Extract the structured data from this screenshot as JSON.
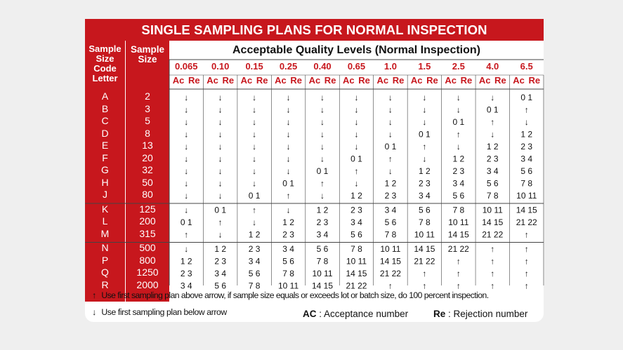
{
  "title": "SINGLE SAMPLING PLANS FOR NORMAL INSPECTION",
  "header": {
    "code_letter_label": "Sample Size Code Letter",
    "sample_size_label": "Sample Size",
    "aql_title": "Acceptable Quality Levels (Normal Inspection)",
    "ac_re_label": "Ac Re"
  },
  "aql_levels": [
    "0.065",
    "0.10",
    "0.15",
    "0.25",
    "0.40",
    "0.65",
    "1.0",
    "1.5",
    "2.5",
    "4.0",
    "6.5"
  ],
  "code_letters": [
    "A",
    "B",
    "C",
    "D",
    "E",
    "F",
    "G",
    "H",
    "J",
    "K",
    "L",
    "M",
    "N",
    "P",
    "Q",
    "R"
  ],
  "sample_sizes": [
    "2",
    "3",
    "5",
    "8",
    "13",
    "20",
    "32",
    "50",
    "80",
    "125",
    "200",
    "315",
    "500",
    "800",
    "1250",
    "2000"
  ],
  "table": {
    "plans": [
      [
        "↓",
        "↓",
        "↓",
        "↓",
        "↓",
        "↓",
        "↓",
        "↓",
        "↓",
        "↓",
        "0 1"
      ],
      [
        "↓",
        "↓",
        "↓",
        "↓",
        "↓",
        "↓",
        "↓",
        "↓",
        "↓",
        "0 1",
        "↑"
      ],
      [
        "↓",
        "↓",
        "↓",
        "↓",
        "↓",
        "↓",
        "↓",
        "↓",
        "0 1",
        "↑",
        "↓"
      ],
      [
        "↓",
        "↓",
        "↓",
        "↓",
        "↓",
        "↓",
        "↓",
        "0 1",
        "↑",
        "↓",
        "1 2"
      ],
      [
        "↓",
        "↓",
        "↓",
        "↓",
        "↓",
        "↓",
        "0 1",
        "↑",
        "↓",
        "1 2",
        "2 3"
      ],
      [
        "↓",
        "↓",
        "↓",
        "↓",
        "↓",
        "0 1",
        "↑",
        "↓",
        "1 2",
        "2 3",
        "3 4"
      ],
      [
        "↓",
        "↓",
        "↓",
        "↓",
        "0 1",
        "↑",
        "↓",
        "1 2",
        "2 3",
        "3 4",
        "5 6"
      ],
      [
        "↓",
        "↓",
        "↓",
        "0 1",
        "↑",
        "↓",
        "1 2",
        "2 3",
        "3 4",
        "5 6",
        "7 8"
      ],
      [
        "↓",
        "↓",
        "0 1",
        "↑",
        "↓",
        "1 2",
        "2 3",
        "3 4",
        "5 6",
        "7 8",
        "10 11"
      ],
      [
        "↓",
        "0 1",
        "↑",
        "↓",
        "1 2",
        "2 3",
        "3 4",
        "5 6",
        "7 8",
        "10 11",
        "14 15"
      ],
      [
        "0 1",
        "↑",
        "↓",
        "1 2",
        "2 3",
        "3 4",
        "5 6",
        "7 8",
        "10 11",
        "14 15",
        "21 22"
      ],
      [
        "↑",
        "↓",
        "1 2",
        "2 3",
        "3 4",
        "5 6",
        "7 8",
        "10 11",
        "14 15",
        "21 22",
        "↑"
      ],
      [
        "↓",
        "1 2",
        "2 3",
        "3 4",
        "5 6",
        "7 8",
        "10 11",
        "14 15",
        "21 22",
        "↑",
        "↑"
      ],
      [
        "1 2",
        "2 3",
        "3 4",
        "5 6",
        "7 8",
        "10 11",
        "14 15",
        "21 22",
        "↑",
        "↑",
        "↑"
      ],
      [
        "2 3",
        "3 4",
        "5 6",
        "7 8",
        "10 11",
        "14 15",
        "21 22",
        "↑",
        "↑",
        "↑",
        "↑"
      ],
      [
        "3 4",
        "5 6",
        "7 8",
        "10 11",
        "14 15",
        "21 22",
        "↑",
        "↑",
        "↑",
        "↑",
        "↑"
      ]
    ]
  },
  "footer": {
    "up_arrow_note": "Use first sampling plan above arrow, if sample size equals or exceeds lot or batch size, do 100 percent inspection.",
    "down_arrow_note": "Use first sampling plan below arrow",
    "ac_abbrev": "AC",
    "ac_meaning": ": Acceptance number",
    "re_abbrev": "Re",
    "re_meaning": ": Rejection number",
    "up_arrow_icon": "up-arrow-icon",
    "down_arrow_icon": "down-arrow-icon"
  },
  "colors": {
    "accent": "#c7171d",
    "text": "#111111",
    "background": "#ffffff"
  }
}
